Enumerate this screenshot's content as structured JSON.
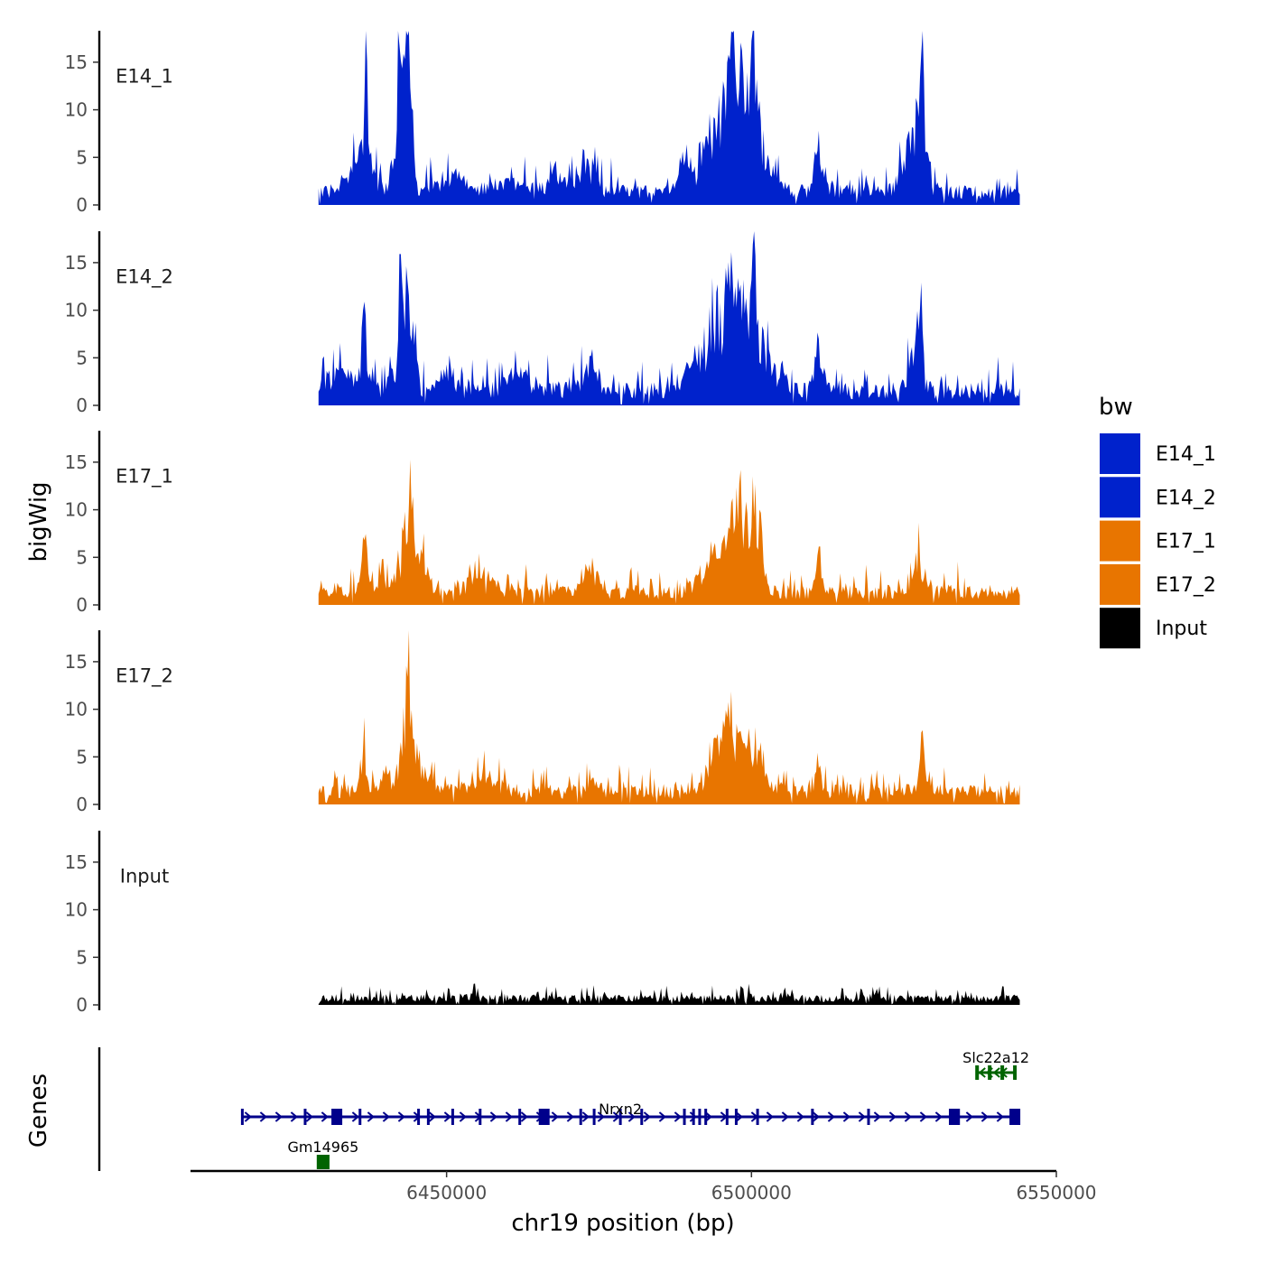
{
  "chart_data": {
    "type": "area",
    "title": "",
    "ylabel": "bigWig",
    "xlabel": "chr19 position (bp)",
    "genes_label": "Genes",
    "xlim": [
      6408000,
      6550000
    ],
    "signal_xlim": [
      6429000,
      6544000
    ],
    "ylim": [
      0,
      18
    ],
    "yticks": [
      0,
      5,
      10,
      15
    ],
    "xticks": [
      6450000,
      6500000,
      6550000
    ],
    "xtick_labels": [
      "6450000",
      "6500000",
      "6550000"
    ],
    "legend": {
      "title": "bw",
      "entries": [
        {
          "label": "E14_1",
          "color": "#0022CC"
        },
        {
          "label": "E14_2",
          "color": "#0022CC"
        },
        {
          "label": "E17_1",
          "color": "#E87500"
        },
        {
          "label": "E17_2",
          "color": "#E87500"
        },
        {
          "label": "Input",
          "color": "#000000"
        }
      ]
    },
    "series": [
      {
        "name": "E14_1",
        "color": "#0022CC",
        "baseline": 1.6,
        "noise": 1.4,
        "peaks": [
          [
            6436000,
            2500,
            5
          ],
          [
            6436800,
            300,
            14
          ],
          [
            6441000,
            700,
            2.5
          ],
          [
            6442200,
            500,
            16
          ],
          [
            6443200,
            800,
            14
          ],
          [
            6443700,
            300,
            17
          ],
          [
            6444500,
            500,
            7
          ],
          [
            6451000,
            3000,
            1.8
          ],
          [
            6460000,
            3000,
            2
          ],
          [
            6468000,
            2500,
            2.5
          ],
          [
            6473000,
            2000,
            3.5
          ],
          [
            6490000,
            2500,
            3
          ],
          [
            6494500,
            3000,
            8
          ],
          [
            6497000,
            1500,
            11
          ],
          [
            6498500,
            1500,
            12
          ],
          [
            6500200,
            500,
            15
          ],
          [
            6501000,
            1500,
            9
          ],
          [
            6504000,
            1200,
            3
          ],
          [
            6511000,
            1000,
            7
          ],
          [
            6527000,
            2200,
            8
          ],
          [
            6528000,
            400,
            16
          ]
        ]
      },
      {
        "name": "E14_2",
        "color": "#0022CC",
        "baseline": 1.8,
        "noise": 1.4,
        "peaks": [
          [
            6433000,
            3000,
            3
          ],
          [
            6436500,
            600,
            10
          ],
          [
            6441000,
            800,
            3
          ],
          [
            6442400,
            400,
            15
          ],
          [
            6443300,
            700,
            13
          ],
          [
            6444500,
            700,
            8
          ],
          [
            6451000,
            3000,
            2
          ],
          [
            6462000,
            3000,
            2
          ],
          [
            6473500,
            2000,
            3
          ],
          [
            6490000,
            2000,
            3
          ],
          [
            6494500,
            2500,
            9
          ],
          [
            6496500,
            1200,
            11
          ],
          [
            6498700,
            1500,
            10
          ],
          [
            6500300,
            500,
            16
          ],
          [
            6502000,
            1500,
            7
          ],
          [
            6505000,
            1000,
            3
          ],
          [
            6511000,
            1000,
            5
          ],
          [
            6526800,
            1500,
            5
          ],
          [
            6527800,
            400,
            12
          ]
        ]
      },
      {
        "name": "E17_1",
        "color": "#E87500",
        "baseline": 1.6,
        "noise": 1.2,
        "peaks": [
          [
            6436500,
            700,
            6
          ],
          [
            6439500,
            900,
            4
          ],
          [
            6443200,
            1500,
            9
          ],
          [
            6444000,
            400,
            12
          ],
          [
            6446000,
            1500,
            3
          ],
          [
            6455000,
            3000,
            2
          ],
          [
            6474000,
            1500,
            3
          ],
          [
            6493000,
            2500,
            3
          ],
          [
            6496500,
            2500,
            7
          ],
          [
            6499000,
            2500,
            8
          ],
          [
            6501000,
            1200,
            5
          ],
          [
            6511000,
            800,
            5
          ],
          [
            6527500,
            1000,
            5
          ]
        ]
      },
      {
        "name": "E17_2",
        "color": "#E87500",
        "baseline": 1.6,
        "noise": 1.2,
        "peaks": [
          [
            6436400,
            600,
            5
          ],
          [
            6440000,
            900,
            3
          ],
          [
            6443300,
            1500,
            8
          ],
          [
            6443800,
            400,
            11
          ],
          [
            6446000,
            1500,
            3
          ],
          [
            6456000,
            3000,
            2
          ],
          [
            6474000,
            1500,
            2
          ],
          [
            6494500,
            2000,
            6
          ],
          [
            6496500,
            1500,
            6
          ],
          [
            6499000,
            2500,
            5
          ],
          [
            6501500,
            1200,
            3
          ],
          [
            6511000,
            800,
            3
          ],
          [
            6528000,
            600,
            7
          ]
        ]
      },
      {
        "name": "Input",
        "color": "#000000",
        "baseline": 0.8,
        "noise": 0.6,
        "peaks": [
          [
            6454500,
            500,
            1.5
          ],
          [
            6505500,
            500,
            1.2
          ],
          [
            6520500,
            400,
            1.3
          ]
        ]
      }
    ],
    "genes": [
      {
        "name": "Nrxn2",
        "strand": "+",
        "start": 6416500,
        "end": 6543500,
        "row": 2,
        "color": "#00008B",
        "exons": [
          6416500,
          6426800,
          6435800,
          6445400,
          6447000,
          6451000,
          6455500,
          6462000,
          6472000,
          6474200,
          6478500,
          6482000,
          6489000,
          6490500,
          6491500,
          6492500,
          6496000,
          6497500,
          6501000,
          6510000,
          6519200,
          6532600,
          6543000
        ],
        "big_exons": [
          6432000,
          6466000,
          6533300,
          6543200
        ]
      },
      {
        "name": "Slc22a12",
        "strand": "-",
        "start": 6537000,
        "end": 6543200,
        "row": 1,
        "color": "#006400"
      },
      {
        "name": "Gm14965",
        "strand": "-",
        "start": 6429000,
        "end": 6430500,
        "row": 3,
        "color": "#006400"
      }
    ]
  }
}
